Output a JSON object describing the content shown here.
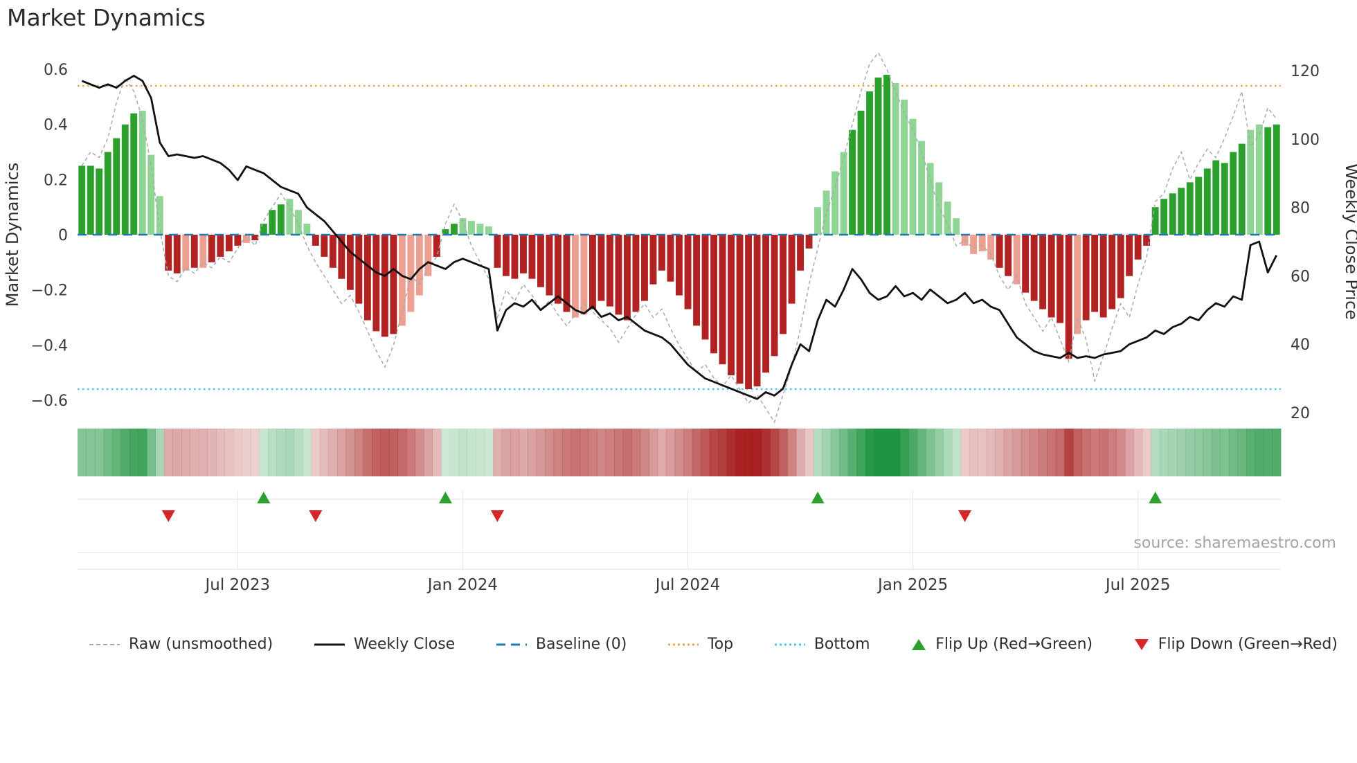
{
  "page": {
    "title": "Market Dynamics"
  },
  "source_note": "source: sharemaestro.com",
  "legend": {
    "items": [
      {
        "key": "raw",
        "label": "Raw (unsmoothed)"
      },
      {
        "key": "close",
        "label": "Weekly Close"
      },
      {
        "key": "baseline",
        "label": "Baseline (0)"
      },
      {
        "key": "top",
        "label": "Top"
      },
      {
        "key": "bottom",
        "label": "Bottom"
      },
      {
        "key": "flip_up",
        "label": "Flip Up (Red→Green)"
      },
      {
        "key": "flip_down",
        "label": "Flip Down (Green→Red)"
      }
    ]
  },
  "chart_data": {
    "type": "combo",
    "subtypes": [
      "bar",
      "line",
      "heatmap-strip",
      "event-markers"
    ],
    "title": "Market Dynamics",
    "layout": {
      "grid": false,
      "legend_position": "bottom"
    },
    "left_axis": {
      "label": "Market Dynamics",
      "range": [
        -0.72,
        0.66
      ],
      "ticks": [
        {
          "label": "0.6",
          "value": 0.6
        },
        {
          "label": "0.4",
          "value": 0.4
        },
        {
          "label": "0.2",
          "value": 0.2
        },
        {
          "label": "0",
          "value": 0
        },
        {
          "label": "−0.2",
          "value": -0.2
        },
        {
          "label": "−0.4",
          "value": -0.4
        },
        {
          "label": "−0.6",
          "value": -0.6
        }
      ]
    },
    "right_axis": {
      "label": "Weekly Close Price",
      "range": [
        20,
        120
      ],
      "ticks": [
        {
          "label": "120",
          "value": 120
        },
        {
          "label": "100",
          "value": 100
        },
        {
          "label": "80",
          "value": 80
        },
        {
          "label": "60",
          "value": 60
        },
        {
          "label": "40",
          "value": 40
        },
        {
          "label": "20",
          "value": 20
        }
      ]
    },
    "x_axis": {
      "unit": "week",
      "weeks": 139,
      "ticks": [
        {
          "label": "Jul 2023",
          "week": 18
        },
        {
          "label": "Jan 2024",
          "week": 44
        },
        {
          "label": "Jul 2024",
          "week": 70
        },
        {
          "label": "Jan 2025",
          "week": 96
        },
        {
          "label": "Jul 2025",
          "week": 122
        }
      ]
    },
    "reference_lines": {
      "baseline": 0,
      "top": 0.54,
      "bottom": -0.56
    },
    "series": {
      "oscillator": [
        0.25,
        0.25,
        0.24,
        0.3,
        0.35,
        0.4,
        0.44,
        0.45,
        0.29,
        0.14,
        -0.13,
        -0.14,
        -0.13,
        -0.12,
        -0.12,
        -0.1,
        -0.08,
        -0.06,
        -0.04,
        -0.03,
        -0.02,
        0.04,
        0.09,
        0.11,
        0.13,
        0.09,
        0.04,
        -0.04,
        -0.08,
        -0.12,
        -0.16,
        -0.2,
        -0.25,
        -0.31,
        -0.35,
        -0.37,
        -0.36,
        -0.33,
        -0.28,
        -0.22,
        -0.15,
        -0.08,
        0.02,
        0.04,
        0.06,
        0.05,
        0.04,
        0.03,
        -0.12,
        -0.15,
        -0.16,
        -0.14,
        -0.16,
        -0.19,
        -0.22,
        -0.25,
        -0.28,
        -0.3,
        -0.29,
        -0.27,
        -0.24,
        -0.26,
        -0.29,
        -0.31,
        -0.28,
        -0.24,
        -0.18,
        -0.13,
        -0.17,
        -0.22,
        -0.27,
        -0.33,
        -0.38,
        -0.43,
        -0.47,
        -0.51,
        -0.54,
        -0.56,
        -0.55,
        -0.5,
        -0.44,
        -0.36,
        -0.25,
        -0.13,
        -0.05,
        0.1,
        0.16,
        0.23,
        0.3,
        0.38,
        0.45,
        0.52,
        0.57,
        0.58,
        0.55,
        0.49,
        0.42,
        0.34,
        0.26,
        0.19,
        0.12,
        0.06,
        -0.04,
        -0.07,
        -0.06,
        -0.09,
        -0.12,
        -0.15,
        -0.18,
        -0.21,
        -0.24,
        -0.27,
        -0.3,
        -0.32,
        -0.45,
        -0.36,
        -0.31,
        -0.28,
        -0.3,
        -0.27,
        -0.23,
        -0.15,
        -0.09,
        -0.04,
        0.1,
        0.13,
        0.15,
        0.17,
        0.19,
        0.21,
        0.24,
        0.27,
        0.26,
        0.3,
        0.33,
        0.38,
        0.4,
        0.39,
        0.4
      ],
      "raw": [
        0.25,
        0.3,
        0.28,
        0.35,
        0.48,
        0.57,
        0.52,
        0.42,
        0.25,
        0.02,
        -0.15,
        -0.17,
        -0.12,
        -0.14,
        -0.1,
        -0.12,
        -0.08,
        -0.1,
        -0.05,
        0.0,
        -0.04,
        0.05,
        0.1,
        0.15,
        0.1,
        0.04,
        -0.04,
        -0.1,
        -0.15,
        -0.2,
        -0.25,
        -0.22,
        -0.28,
        -0.35,
        -0.42,
        -0.48,
        -0.4,
        -0.28,
        -0.15,
        -0.18,
        -0.12,
        -0.08,
        0.04,
        0.11,
        0.05,
        -0.04,
        -0.1,
        -0.16,
        -0.3,
        -0.2,
        -0.24,
        -0.18,
        -0.22,
        -0.27,
        -0.24,
        -0.29,
        -0.33,
        -0.29,
        -0.25,
        -0.28,
        -0.31,
        -0.34,
        -0.39,
        -0.34,
        -0.29,
        -0.25,
        -0.3,
        -0.27,
        -0.34,
        -0.4,
        -0.45,
        -0.5,
        -0.47,
        -0.52,
        -0.55,
        -0.51,
        -0.56,
        -0.61,
        -0.58,
        -0.63,
        -0.68,
        -0.58,
        -0.48,
        -0.34,
        -0.18,
        -0.05,
        0.08,
        0.17,
        0.28,
        0.4,
        0.52,
        0.62,
        0.66,
        0.6,
        0.52,
        0.44,
        0.38,
        0.3,
        0.2,
        0.1,
        0.04,
        -0.04,
        -0.02,
        -0.05,
        -0.04,
        -0.07,
        -0.15,
        -0.2,
        -0.15,
        -0.25,
        -0.3,
        -0.35,
        -0.3,
        -0.38,
        -0.46,
        -0.3,
        -0.38,
        -0.53,
        -0.44,
        -0.34,
        -0.25,
        -0.3,
        -0.18,
        -0.08,
        0.12,
        0.15,
        0.24,
        0.3,
        0.2,
        0.26,
        0.31,
        0.28,
        0.35,
        0.43,
        0.52,
        0.32,
        0.36,
        0.46,
        0.42
      ],
      "weekly_close": [
        117,
        116,
        115,
        116,
        115,
        117,
        118.5,
        117,
        112,
        99,
        95,
        95.5,
        95,
        94.5,
        95,
        94,
        93,
        91,
        88,
        92,
        91,
        90,
        88,
        86,
        85,
        84,
        80,
        78,
        76,
        73,
        70,
        67,
        65,
        63,
        61,
        60,
        62,
        60,
        59,
        62,
        64,
        63,
        62,
        64,
        65,
        64,
        63,
        62,
        44,
        50,
        52,
        51,
        53,
        50,
        52,
        54,
        52,
        50,
        49,
        51,
        48,
        49,
        47,
        48,
        46,
        44,
        43,
        42,
        40,
        37,
        34,
        32,
        30,
        29,
        28,
        27,
        26,
        25,
        24,
        26,
        25,
        27,
        34,
        40,
        38,
        47,
        53,
        51,
        56,
        62,
        59,
        55,
        53,
        54,
        57,
        54,
        55,
        53,
        56,
        54,
        52,
        53,
        55,
        52,
        53,
        51,
        50,
        46,
        42,
        40,
        38,
        37,
        36.5,
        36,
        37.5,
        36,
        36.5,
        36,
        37,
        37.5,
        38,
        40,
        41,
        42,
        44,
        43,
        45,
        46,
        48,
        47,
        50,
        52,
        51,
        54,
        53,
        69,
        70,
        61,
        66
      ]
    },
    "flip_up_weeks": [
      21,
      42,
      85,
      124
    ],
    "flip_down_weeks": [
      10,
      27,
      48,
      102
    ],
    "heatmap_strip": {
      "source": "oscillator",
      "encoding": "sign→hue, magnitude→intensity"
    },
    "colors": {
      "baseline": "#1f77b4",
      "top": "#f0a150",
      "bottom": "#4ac4ee",
      "raw": "#a9a9a9",
      "close": "#111111",
      "flip_up": "#2ca02c",
      "flip_down": "#d62728",
      "bar_green_dark": "#2ca02c",
      "bar_green_light": "#8fd694",
      "bar_red_dark": "#b22222",
      "bar_red_light": "#eda092",
      "heat_green_rgb": "27,146,60",
      "heat_red_rgb": "166,28,28"
    }
  }
}
